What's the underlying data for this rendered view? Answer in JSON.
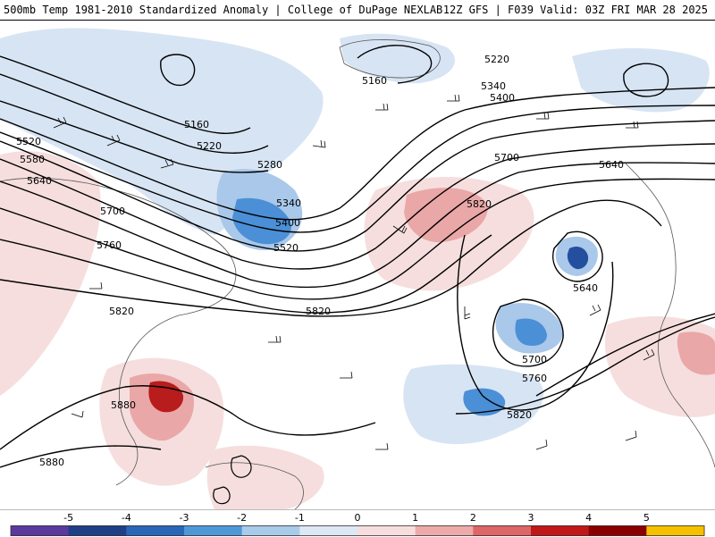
{
  "header": {
    "left_title": "500mb Temp 1981-2010 Standardized Anomaly | College of DuPage NEXLAB",
    "right_title": "12Z GFS | F039 Valid: 03Z FRI MAR 28 2025"
  },
  "contour_labels": [
    "5160",
    "5220",
    "5340",
    "5400",
    "5160",
    "5220",
    "5280",
    "5340",
    "5400",
    "5520",
    "5520",
    "5580",
    "5640",
    "5700",
    "5760",
    "5700",
    "5640",
    "5820",
    "5820",
    "5820",
    "5640",
    "5700",
    "5760",
    "5820",
    "5880",
    "5880"
  ],
  "colorbar": {
    "ticks": [
      "-5",
      "-4",
      "-3",
      "-2",
      "-1",
      "0",
      "1",
      "2",
      "3",
      "4",
      "5"
    ],
    "colors": [
      "#5b3a9e",
      "#1f3f86",
      "#2a66b8",
      "#4f98d8",
      "#a9cbea",
      "#dde8f4",
      "#f7dede",
      "#eeaaaa",
      "#dd6666",
      "#c01818",
      "#8a0000",
      "#f5c000"
    ]
  },
  "map_colors": {
    "ocean": "#ffffff",
    "cold_light": "#d7e4f3",
    "cold_mid": "#a9c8ea",
    "cold_strong": "#4b8fd6",
    "cold_deep": "#234f9e",
    "warm_light": "#f6dede",
    "warm_mid": "#eaa7a7",
    "warm_strong": "#d85a5a",
    "warm_deep": "#b81c1c",
    "contour": "#000000",
    "coastline": "#555555"
  }
}
